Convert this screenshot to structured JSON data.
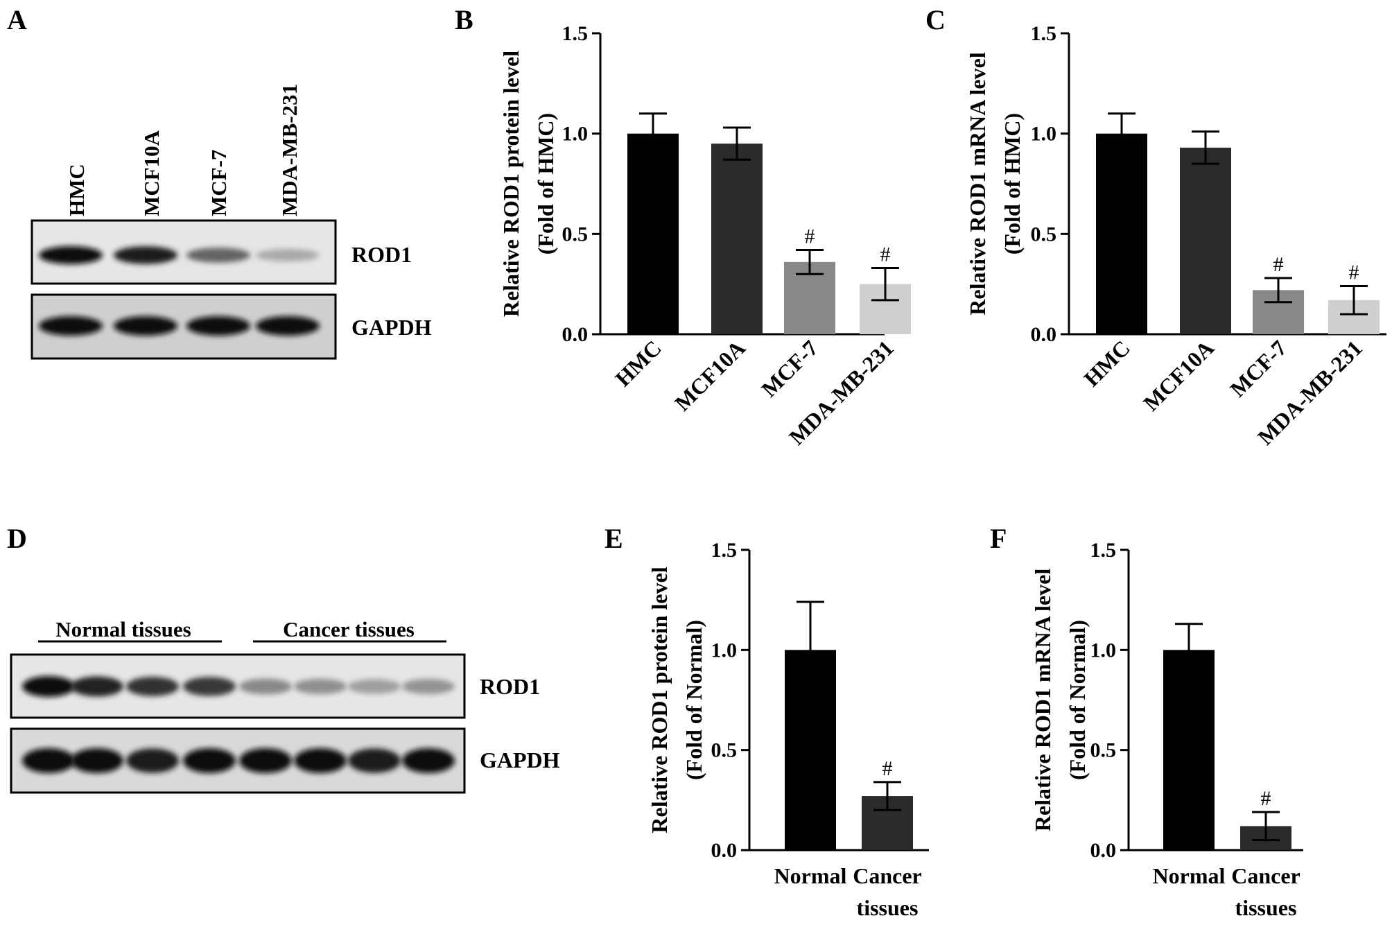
{
  "blots": {
    "A": {
      "panel": "A",
      "lanes": [
        "HMC",
        "MCF10A",
        "MCF-7",
        "MDA-MB-231"
      ],
      "bands": [
        "ROD1",
        "GAPDH"
      ],
      "rod1_intensity": [
        1.0,
        0.95,
        0.62,
        0.3
      ],
      "gapdh_intensity": [
        1.0,
        1.0,
        1.0,
        1.0
      ]
    },
    "D": {
      "panel": "D",
      "groups": [
        "Normal tissues",
        "Cancer tissues"
      ],
      "bands": [
        "ROD1",
        "GAPDH"
      ],
      "rod1_intensity": [
        1.0,
        0.92,
        0.85,
        0.82,
        0.45,
        0.42,
        0.35,
        0.4
      ],
      "gapdh_intensity": [
        1.0,
        1.0,
        0.95,
        1.0,
        1.0,
        1.0,
        0.95,
        1.0
      ]
    }
  },
  "chart_data": [
    {
      "panel": "B",
      "type": "bar",
      "categories": [
        "HMC",
        "MCF10A",
        "MCF-7",
        "MDA-MB-231"
      ],
      "values": [
        1.0,
        0.95,
        0.36,
        0.25
      ],
      "errors": [
        0.1,
        0.08,
        0.06,
        0.08
      ],
      "colors": [
        "#000000",
        "#2b2b2b",
        "#888888",
        "#cfcfcf"
      ],
      "significance": [
        "",
        "",
        "#",
        "#"
      ],
      "ylabel": "Relative ROD1 protein level",
      "ylabel2": "(Fold of HMC)",
      "ylim": [
        0,
        1.5
      ],
      "yticks": [
        "0.0",
        "0.5",
        "1.0",
        "1.5"
      ]
    },
    {
      "panel": "C",
      "type": "bar",
      "categories": [
        "HMC",
        "MCF10A",
        "MCF-7",
        "MDA-MB-231"
      ],
      "values": [
        1.0,
        0.93,
        0.22,
        0.17
      ],
      "errors": [
        0.1,
        0.08,
        0.06,
        0.07
      ],
      "colors": [
        "#000000",
        "#2b2b2b",
        "#888888",
        "#cfcfcf"
      ],
      "significance": [
        "",
        "",
        "#",
        "#"
      ],
      "ylabel": "Relative ROD1 mRNA level",
      "ylabel2": "(Fold of HMC)",
      "ylim": [
        0,
        1.5
      ],
      "yticks": [
        "0.0",
        "0.5",
        "1.0",
        "1.5"
      ]
    },
    {
      "panel": "E",
      "type": "bar",
      "categories": [
        "Normal",
        "Cancer tissues"
      ],
      "category_lines": [
        [
          "Normal"
        ],
        [
          "Cancer",
          "tissues"
        ]
      ],
      "values": [
        1.0,
        0.27
      ],
      "errors": [
        0.24,
        0.07
      ],
      "colors": [
        "#000000",
        "#2b2b2b"
      ],
      "significance": [
        "",
        "#"
      ],
      "ylabel": "Relative ROD1 protein level",
      "ylabel2": "(Fold of Normal)",
      "ylim": [
        0,
        1.5
      ],
      "yticks": [
        "0.0",
        "0.5",
        "1.0",
        "1.5"
      ]
    },
    {
      "panel": "F",
      "type": "bar",
      "categories": [
        "Normal",
        "Cancer tissues"
      ],
      "category_lines": [
        [
          "Normal"
        ],
        [
          "Cancer",
          "tissues"
        ]
      ],
      "values": [
        1.0,
        0.12
      ],
      "errors": [
        0.13,
        0.07
      ],
      "colors": [
        "#000000",
        "#2b2b2b"
      ],
      "significance": [
        "",
        "#"
      ],
      "ylabel": "Relative ROD1 mRNA level",
      "ylabel2": "(Fold of Normal)",
      "ylim": [
        0,
        1.5
      ],
      "yticks": [
        "0.0",
        "0.5",
        "1.0",
        "1.5"
      ]
    }
  ]
}
